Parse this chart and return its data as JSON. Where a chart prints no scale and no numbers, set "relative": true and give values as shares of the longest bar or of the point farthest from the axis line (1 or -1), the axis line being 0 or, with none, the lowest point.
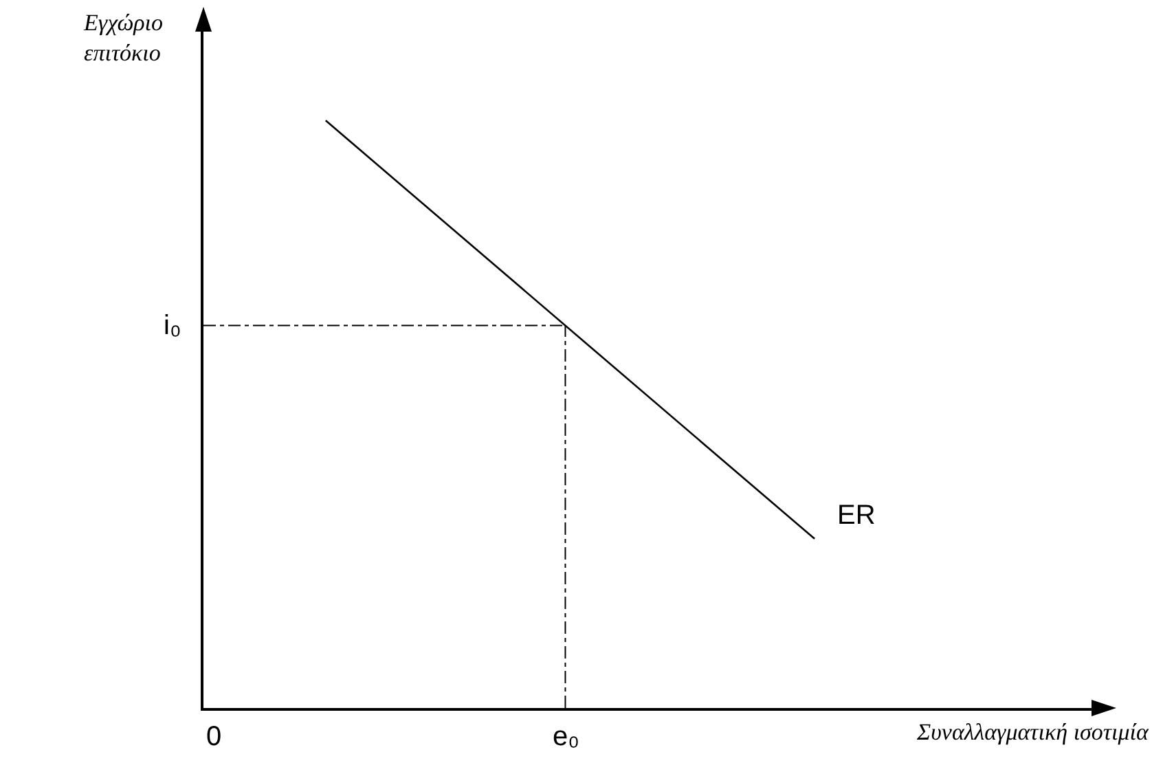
{
  "chart_data": {
    "type": "line",
    "relative": true,
    "ylabel": "Εγχώριο επιτόκιο",
    "annotations": [
      "0",
      "e₀",
      "Συναλλαγματική ισοτιμία"
    ],
    "categories": [
      null,
      null,
      null,
      null,
      null,
      null,
      null,
      null,
      null,
      null,
      null
    ],
    "series": [
      {
        "name": "ER",
        "color": "#000000",
        "values": [
          null,
          1,
          null,
          null,
          null,
          null,
          null,
          0.288,
          null,
          null,
          null
        ]
      }
    ],
    "ref_lines": [
      {
        "axis": "y",
        "value": 0.651,
        "label": "i₀",
        "color": "#000000",
        "line_style": "dashed"
      }
    ],
    "legend": false,
    "line_style": "solid"
  }
}
